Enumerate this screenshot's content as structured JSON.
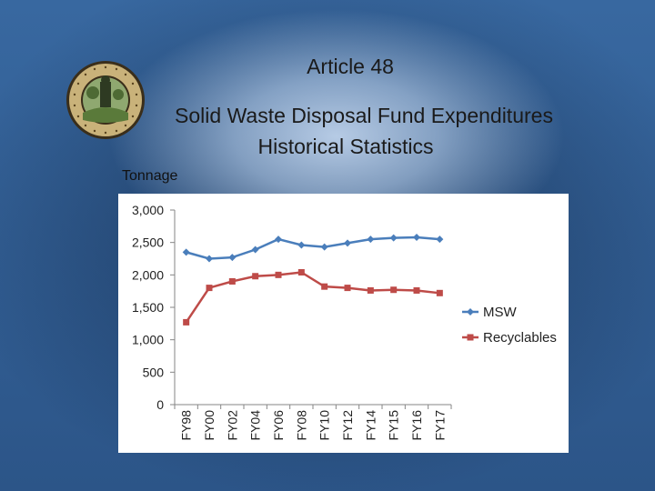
{
  "slide": {
    "title_line1": "Article 48",
    "title_line2": "Solid Waste Disposal Fund Expenditures",
    "title_line3": "Historical Statistics",
    "units_label": "Tonnage"
  },
  "seal": {
    "colors": {
      "ring": "#c9b27a",
      "center": "#5a7a3a",
      "border": "#3a2e1a"
    }
  },
  "chart_data": {
    "type": "line",
    "categories": [
      "FY98",
      "FY00",
      "FY02",
      "FY04",
      "FY06",
      "FY08",
      "FY10",
      "FY12",
      "FY14",
      "FY15",
      "FY16",
      "FY17"
    ],
    "series": [
      {
        "name": "MSW",
        "color": "#4a7ebb",
        "marker": "diamond",
        "values": [
          2350,
          2250,
          2270,
          2390,
          2550,
          2460,
          2430,
          2490,
          2550,
          2570,
          2580,
          2550
        ]
      },
      {
        "name": "Recyclables",
        "color": "#be4b48",
        "marker": "square",
        "values": [
          1270,
          1800,
          1900,
          1980,
          2000,
          2040,
          1820,
          1800,
          1760,
          1770,
          1760,
          1720
        ]
      }
    ],
    "y_ticks": [
      "0",
      "500",
      "1,000",
      "1,500",
      "2,000",
      "2,500",
      "3,000"
    ],
    "ylim": [
      0,
      3000
    ],
    "grid": false,
    "legend": "right"
  }
}
